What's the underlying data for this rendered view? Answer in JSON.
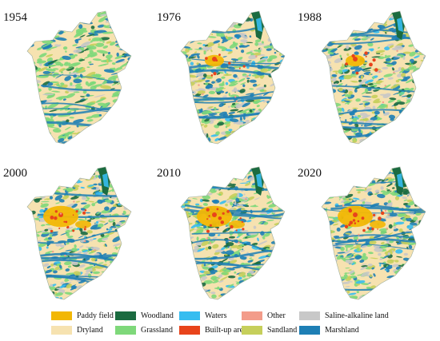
{
  "panels": [
    {
      "year": "1954"
    },
    {
      "year": "1976"
    },
    {
      "year": "1988"
    },
    {
      "year": "2000"
    },
    {
      "year": "2010"
    },
    {
      "year": "2020"
    }
  ],
  "legend": {
    "items": [
      {
        "label": "Paddy field",
        "color": "#F2B705"
      },
      {
        "label": "Woodland",
        "color": "#1B6B40"
      },
      {
        "label": "Waters",
        "color": "#36BDF0"
      },
      {
        "label": "Other",
        "color": "#F39C8A"
      },
      {
        "label": "Saline-alkaline land",
        "color": "#C8C8C8"
      },
      {
        "label": "Dryland",
        "color": "#F6E2B0"
      },
      {
        "label": "Grassland",
        "color": "#7ED87A"
      },
      {
        "label": "Built-up areas",
        "color": "#E8441B"
      },
      {
        "label": "Sandland",
        "color": "#C6CF5B"
      },
      {
        "label": "Marshland",
        "color": "#1E7FB5"
      }
    ]
  }
}
